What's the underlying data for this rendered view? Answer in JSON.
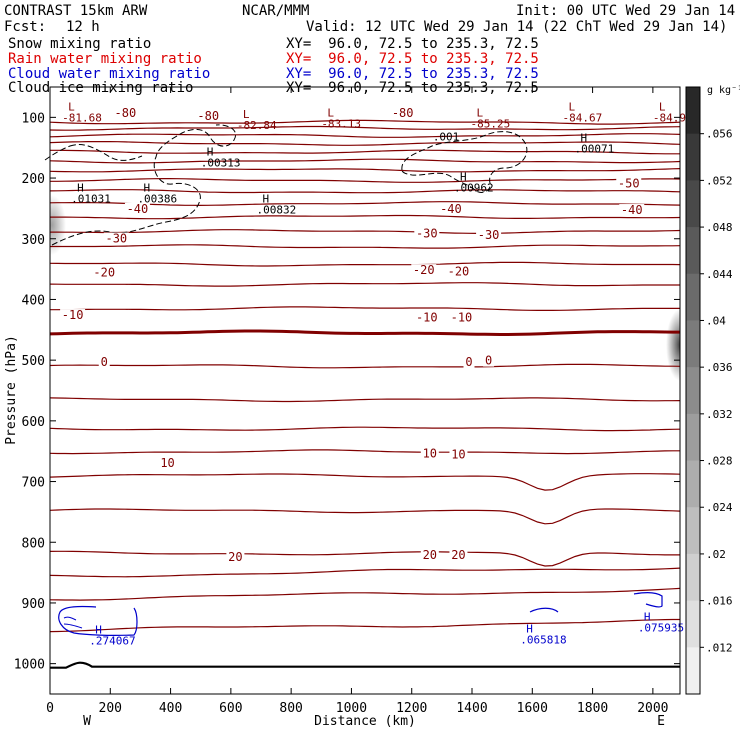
{
  "header": {
    "model": "CONTRAST 15km ARW",
    "org": "NCAR/MMM",
    "init": "Init: 00 UTC Wed 29 Jan 14",
    "fcst_label": "Fcst:",
    "fcst_value": "12 h",
    "valid": "Valid: 12 UTC Wed 29 Jan 14 (22 ChT Wed 29 Jan 14)",
    "fields": [
      {
        "name": "Snow mixing ratio",
        "xy": "XY=  96.0, 72.5 to 235.3, 72.5",
        "color": "#000000"
      },
      {
        "name": "Rain water mixing ratio",
        "xy": "XY=  96.0, 72.5 to 235.3, 72.5",
        "color": "#dd0000"
      },
      {
        "name": "Cloud water mixing ratio",
        "xy": "XY=  96.0, 72.5 to 235.3, 72.5",
        "color": "#0000cc"
      },
      {
        "name": "Cloud ice mixing ratio",
        "xy": "XY=  96.0, 72.5 to 235.3, 72.5",
        "color": "#000000"
      }
    ]
  },
  "colors": {
    "temperature_contour": "#800000",
    "cloud_water": "#0000cc",
    "cloud_ice": "#000000",
    "terrain": "#000000"
  },
  "chart_data": {
    "type": "cross-section contour",
    "xlabel": "Distance (km)",
    "ylabel": "Pressure (hPa)",
    "xlim": [
      0,
      2090
    ],
    "ylim": [
      1050,
      50
    ],
    "x_ticks": [
      0,
      200,
      400,
      600,
      800,
      1000,
      1200,
      1400,
      1600,
      1800,
      2000
    ],
    "y_ticks": [
      100,
      200,
      300,
      400,
      500,
      600,
      700,
      800,
      900,
      1000
    ],
    "x_end_labels": {
      "left": "W",
      "right": "E"
    },
    "colorbar": {
      "unit": "g kg⁻¹",
      "ticks": [
        ".056",
        ".052",
        ".048",
        ".044",
        ".04",
        ".036",
        ".032",
        ".028",
        ".024",
        ".02",
        ".016",
        ".012"
      ]
    },
    "temperature_contours": [
      {
        "level": -80,
        "p": 108
      },
      {
        "level": -75,
        "p": 118
      },
      {
        "level": -70,
        "p": 130
      },
      {
        "level": -65,
        "p": 143
      },
      {
        "level": -60,
        "p": 157
      },
      {
        "level": -55,
        "p": 172
      },
      {
        "level": -50,
        "p": 187
      },
      {
        "level": -45,
        "p": 204
      },
      {
        "level": -40,
        "p": 222
      },
      {
        "level": -35,
        "p": 242
      },
      {
        "level": -30,
        "p": 264
      },
      {
        "level": -25,
        "p": 288
      },
      {
        "level": -20,
        "p": 313
      },
      {
        "level": -15,
        "p": 342
      },
      {
        "level": -10,
        "p": 375
      },
      {
        "level": -5,
        "p": 415
      },
      {
        "level": 0,
        "p": 455
      },
      {
        "level": 5,
        "p": 510
      },
      {
        "level": 10,
        "p": 565
      },
      {
        "level": 15,
        "p": 613
      },
      {
        "level": 20,
        "p": 651
      },
      {
        "level": 25,
        "p": 690
      },
      {
        "level": 30,
        "p": 748
      },
      {
        "level": 35,
        "p": 818
      },
      {
        "level": 40,
        "p": 856
      },
      {
        "level": 45,
        "p": 893
      },
      {
        "level": 50,
        "p": 945
      }
    ],
    "contour_labels": [
      {
        "text": "-80",
        "x": 250,
        "p": 96
      },
      {
        "text": "-80",
        "x": 525,
        "p": 101
      },
      {
        "text": "-80",
        "x": 1170,
        "p": 96
      },
      {
        "text": "-50",
        "x": 1920,
        "p": 212
      },
      {
        "text": "-40",
        "x": 290,
        "p": 254
      },
      {
        "text": "-40",
        "x": 1330,
        "p": 254
      },
      {
        "text": "-40",
        "x": 1930,
        "p": 256
      },
      {
        "text": "-30",
        "x": 220,
        "p": 303
      },
      {
        "text": "-30",
        "x": 1250,
        "p": 295
      },
      {
        "text": "-30",
        "x": 1455,
        "p": 297
      },
      {
        "text": "-20",
        "x": 180,
        "p": 359
      },
      {
        "text": "-20",
        "x": 1240,
        "p": 355
      },
      {
        "text": "-20",
        "x": 1355,
        "p": 357
      },
      {
        "text": "-10",
        "x": 75,
        "p": 429
      },
      {
        "text": "-10",
        "x": 1250,
        "p": 433
      },
      {
        "text": "-10",
        "x": 1365,
        "p": 433
      },
      {
        "text": "0",
        "x": 180,
        "p": 506
      },
      {
        "text": "0",
        "x": 1390,
        "p": 506
      },
      {
        "text": "0",
        "x": 1455,
        "p": 504
      },
      {
        "text": "10",
        "x": 390,
        "p": 673
      },
      {
        "text": "10",
        "x": 1260,
        "p": 657
      },
      {
        "text": "10",
        "x": 1355,
        "p": 659
      },
      {
        "text": "20",
        "x": 615,
        "p": 828
      },
      {
        "text": "20",
        "x": 1260,
        "p": 824
      },
      {
        "text": "20",
        "x": 1355,
        "p": 824
      }
    ],
    "extrema": [
      {
        "kind": "L",
        "value": "-81.68",
        "x": 60,
        "p": 89,
        "color": "#800000"
      },
      {
        "kind": "L",
        "value": "-82.84",
        "x": 640,
        "p": 101,
        "color": "#800000"
      },
      {
        "kind": "L",
        "value": "-83.13",
        "x": 920,
        "p": 99,
        "color": "#800000"
      },
      {
        "kind": "L",
        "value": "-85.25",
        "x": 1415,
        "p": 99,
        "color": "#800000"
      },
      {
        "kind": "L",
        "value": "-84.67",
        "x": 1720,
        "p": 89,
        "color": "#800000"
      },
      {
        "kind": "L",
        "value": "-84.99",
        "x": 2020,
        "p": 89,
        "color": "#800000"
      },
      {
        "kind": "H",
        "value": ".01031",
        "x": 90,
        "p": 222,
        "color": "#000000"
      },
      {
        "kind": "H",
        "value": ".00386",
        "x": 310,
        "p": 222,
        "color": "#000000"
      },
      {
        "kind": "H",
        "value": ".00313",
        "x": 520,
        "p": 163,
        "color": "#000000"
      },
      {
        "kind": "H",
        "value": ".00832",
        "x": 705,
        "p": 240,
        "color": "#000000"
      },
      {
        "kind": "H",
        "value": ".00962",
        "x": 1360,
        "p": 204,
        "color": "#000000"
      },
      {
        "kind": "H",
        "value": ".00071",
        "x": 1760,
        "p": 140,
        "color": "#000000"
      },
      {
        "kind": "H",
        "value": ".274067",
        "x": 150,
        "p": 950,
        "color": "#0000cc"
      },
      {
        "kind": "H",
        "value": ".065818",
        "x": 1580,
        "p": 949,
        "color": "#0000cc"
      },
      {
        "kind": "H",
        "value": ".075935",
        "x": 1970,
        "p": 929,
        "color": "#0000cc"
      }
    ],
    "cloud_ice_label": {
      "text": ".001",
      "x": 1270,
      "p": 138
    },
    "terrain_pressure": 1005
  }
}
